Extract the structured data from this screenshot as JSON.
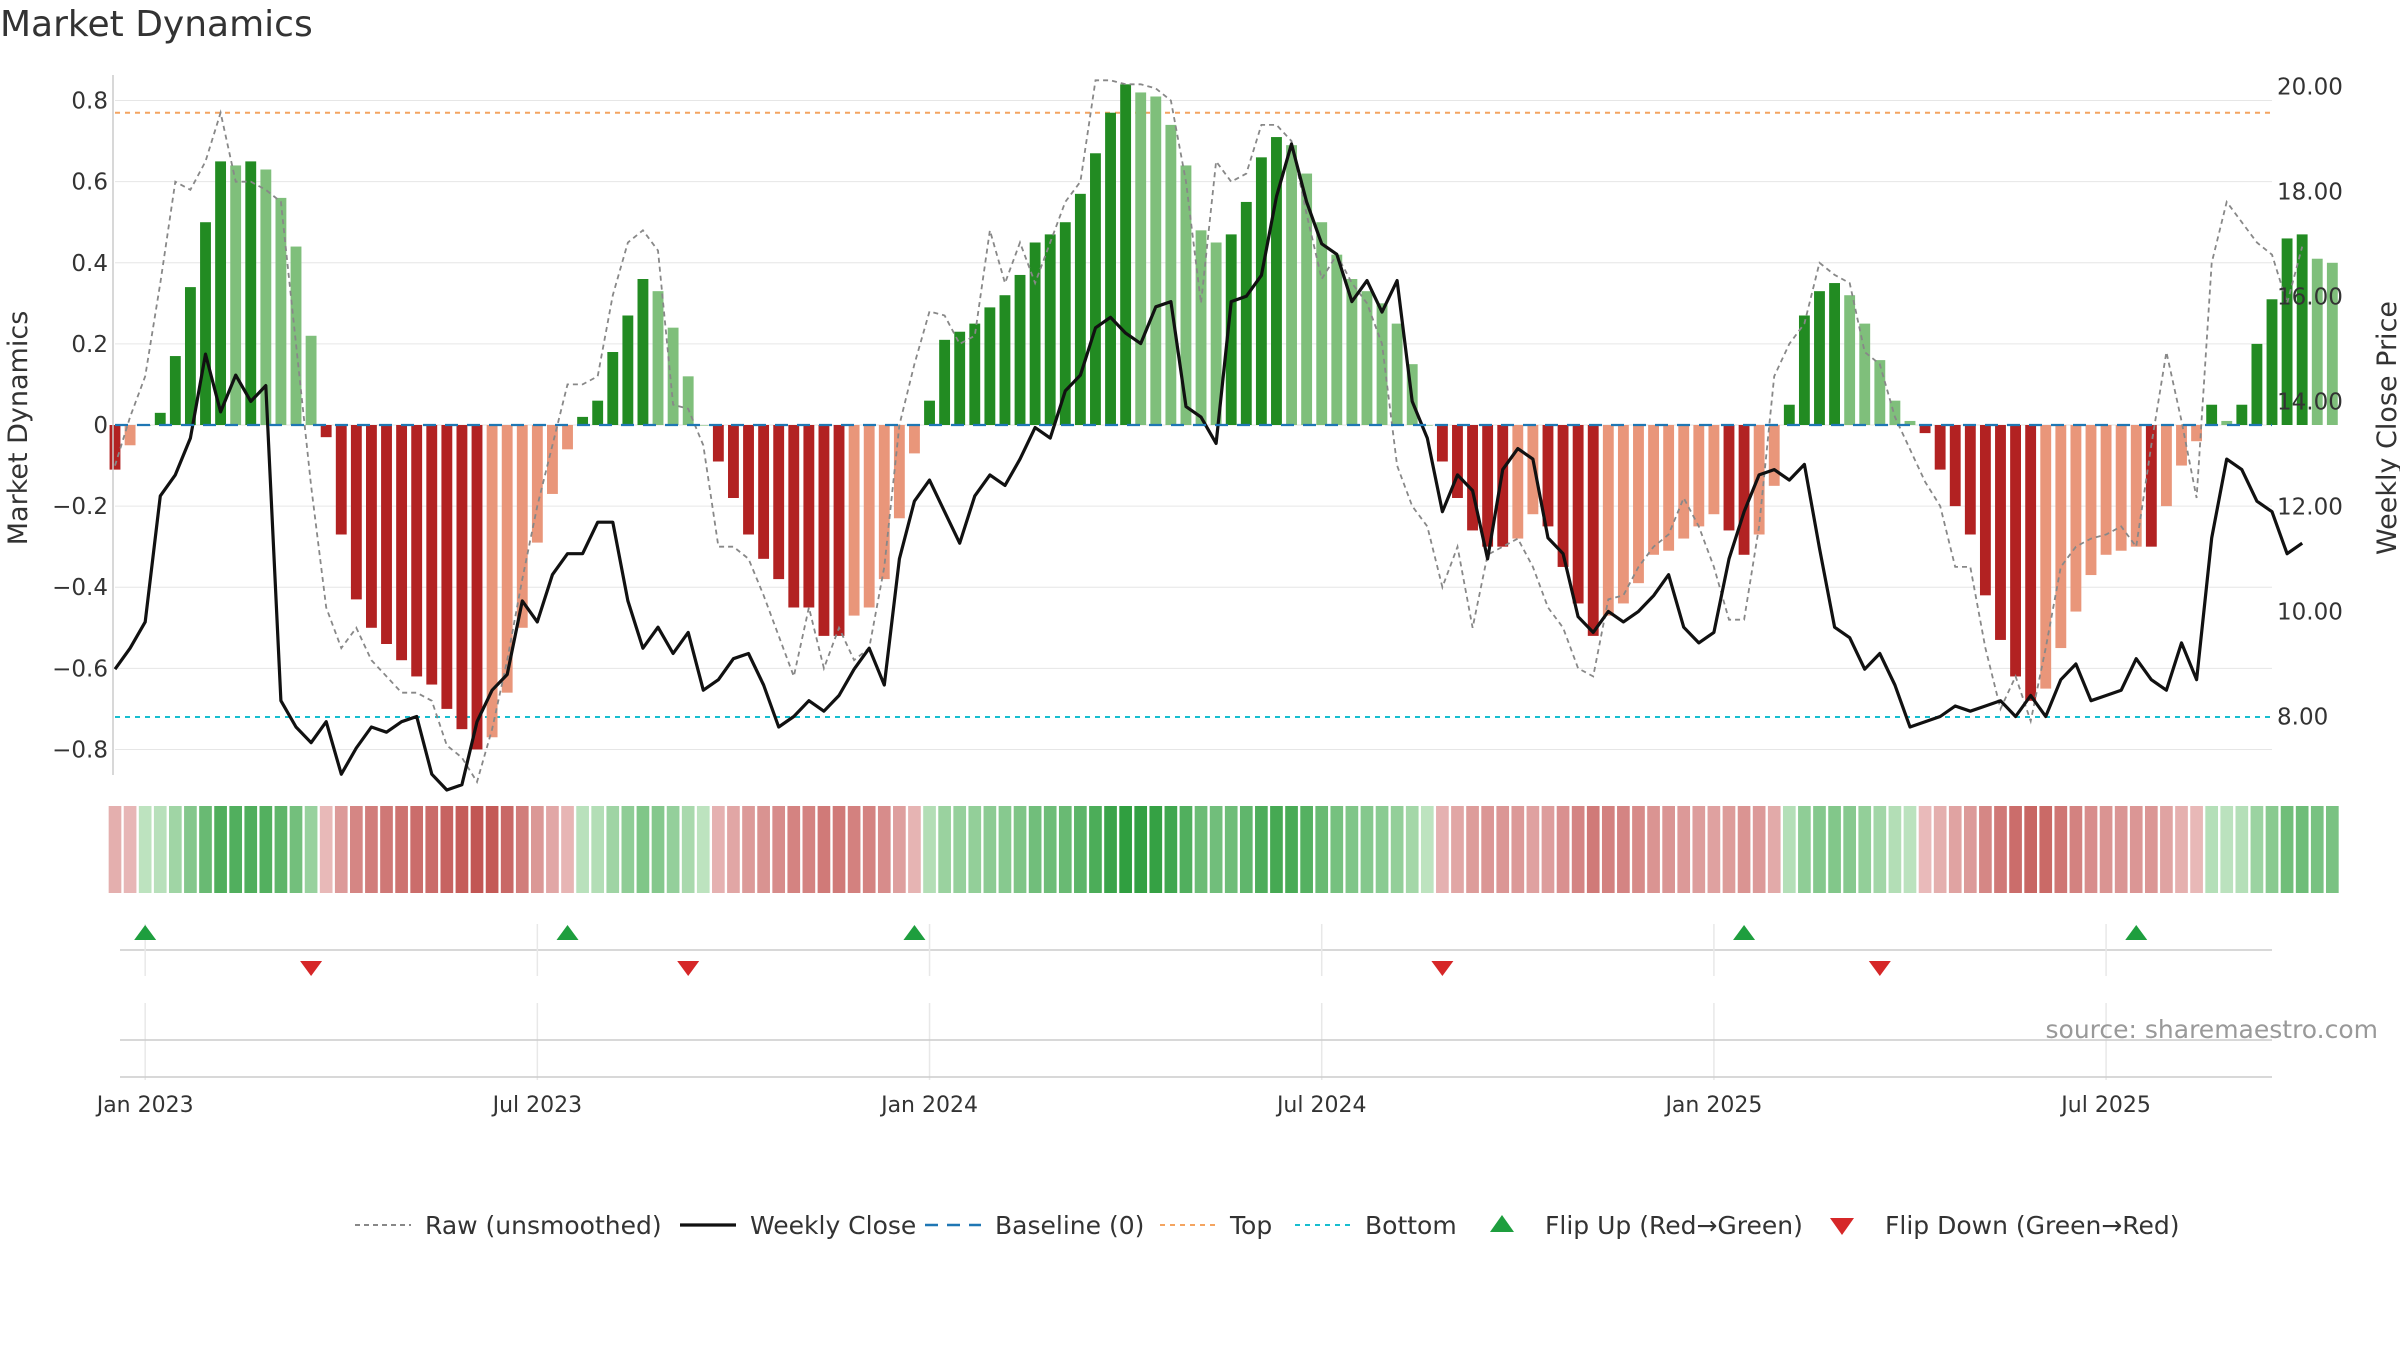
{
  "title": "Market Dynamics",
  "source_text": "source: sharemaestro.com",
  "colors": {
    "strong_green": "#228b22",
    "light_green": "#7fbf7b",
    "strong_red": "#b22222",
    "light_red": "#e9967a",
    "close_line": "#111111",
    "raw_line": "#888888",
    "baseline": "#1f77b4",
    "top": "#f4a460",
    "bottom": "#17becf",
    "flip_up": "#1e9e3e",
    "flip_down": "#d62728",
    "grid": "#e6e6e6"
  },
  "legend": [
    {
      "key": "raw",
      "label": "Raw (unsmoothed)"
    },
    {
      "key": "close",
      "label": "Weekly Close"
    },
    {
      "key": "baseline",
      "label": "Baseline (0)"
    },
    {
      "key": "top",
      "label": "Top"
    },
    {
      "key": "bottom",
      "label": "Bottom"
    },
    {
      "key": "flip_up",
      "label": "Flip Up (Red→Green)"
    },
    {
      "key": "flip_down",
      "label": "Flip Down (Green→Red)"
    }
  ],
  "chart_data": {
    "type": "bar",
    "title": "Market Dynamics",
    "ylabel": "Market Dynamics",
    "y2label": "Weekly Close Price",
    "ylim": [
      -0.9,
      0.9
    ],
    "y_ticks": [
      0.8,
      0.6,
      0.4,
      0.2,
      0,
      -0.2,
      -0.4,
      -0.6,
      -0.8
    ],
    "y_tick_labels": [
      "0.8",
      "0.6",
      "0.4",
      "0.2",
      "0",
      "−0.2",
      "−0.4",
      "−0.6",
      "−0.8"
    ],
    "y2lim": [
      6.6,
      20.5
    ],
    "y2_ticks": [
      20,
      18,
      16,
      14,
      12,
      10,
      8
    ],
    "y2_tick_labels": [
      "20.00",
      "18.00",
      "16.00",
      "14.00",
      "12.00",
      "10.00",
      "8.00"
    ],
    "x_ticks": [
      {
        "label": "Jan 2023",
        "week": 2
      },
      {
        "label": "Jul 2023",
        "week": 28
      },
      {
        "label": "Jan 2024",
        "week": 54
      },
      {
        "label": "Jul 2024",
        "week": 80
      },
      {
        "label": "Jan 2025",
        "week": 106
      },
      {
        "label": "Jul 2025",
        "week": 132
      }
    ],
    "week_range": [
      0,
      143
    ],
    "top_level": 0.77,
    "bottom_level": -0.72,
    "grid": true,
    "legend_position": "bottom",
    "bars": [
      -0.11,
      -0.05,
      0,
      0.03,
      0.17,
      0.34,
      0.5,
      0.65,
      0.64,
      0.65,
      0.63,
      0.56,
      0.44,
      0.22,
      -0.03,
      -0.27,
      -0.43,
      -0.5,
      -0.54,
      -0.58,
      -0.62,
      -0.64,
      -0.7,
      -0.75,
      -0.8,
      -0.77,
      -0.66,
      -0.5,
      -0.29,
      -0.17,
      -0.06,
      0.02,
      0.06,
      0.18,
      0.27,
      0.36,
      0.33,
      0.24,
      0.12,
      0,
      -0.09,
      -0.18,
      -0.27,
      -0.33,
      -0.38,
      -0.45,
      -0.45,
      -0.52,
      -0.52,
      -0.47,
      -0.45,
      -0.38,
      -0.23,
      -0.07,
      0.06,
      0.21,
      0.23,
      0.25,
      0.29,
      0.32,
      0.37,
      0.45,
      0.47,
      0.5,
      0.57,
      0.67,
      0.77,
      0.84,
      0.82,
      0.81,
      0.74,
      0.64,
      0.48,
      0.45,
      0.47,
      0.55,
      0.66,
      0.71,
      0.69,
      0.62,
      0.5,
      0.42,
      0.36,
      0.33,
      0.3,
      0.25,
      0.15,
      0,
      -0.09,
      -0.18,
      -0.26,
      -0.3,
      -0.3,
      -0.28,
      -0.22,
      -0.25,
      -0.35,
      -0.44,
      -0.52,
      -0.47,
      -0.44,
      -0.39,
      -0.32,
      -0.31,
      -0.28,
      -0.25,
      -0.22,
      -0.26,
      -0.32,
      -0.27,
      -0.15,
      0.05,
      0.27,
      0.33,
      0.35,
      0.32,
      0.25,
      0.16,
      0.06,
      0.01,
      -0.02,
      -0.11,
      -0.2,
      -0.27,
      -0.42,
      -0.53,
      -0.62,
      -0.68,
      -0.65,
      -0.55,
      -0.46,
      -0.37,
      -0.32,
      -0.31,
      -0.3,
      -0.3,
      -0.2,
      -0.1,
      -0.04,
      0.05,
      0.01,
      0.05,
      0.2,
      0.31,
      0.46,
      0.47,
      0.41,
      0.4
    ],
    "series": [
      {
        "name": "Raw (unsmoothed)",
        "values": [
          -0.1,
          0.02,
          0.12,
          0.35,
          0.6,
          0.58,
          0.65,
          0.77,
          0.6,
          0.6,
          0.58,
          0.55,
          0.2,
          -0.15,
          -0.45,
          -0.55,
          -0.5,
          -0.58,
          -0.62,
          -0.66,
          -0.66,
          -0.68,
          -0.79,
          -0.82,
          -0.88,
          -0.75,
          -0.58,
          -0.38,
          -0.2,
          -0.05,
          0.1,
          0.1,
          0.12,
          0.32,
          0.45,
          0.48,
          0.43,
          0.05,
          0.04,
          -0.05,
          -0.3,
          -0.3,
          -0.33,
          -0.42,
          -0.52,
          -0.62,
          -0.45,
          -0.6,
          -0.5,
          -0.58,
          -0.55,
          -0.35,
          0,
          0.15,
          0.28,
          0.27,
          0.2,
          0.22,
          0.48,
          0.35,
          0.45,
          0.35,
          0.45,
          0.55,
          0.6,
          0.85,
          0.85,
          0.84,
          0.84,
          0.83,
          0.8,
          0.6,
          0.3,
          0.65,
          0.6,
          0.62,
          0.74,
          0.74,
          0.7,
          0.52,
          0.36,
          0.42,
          0.35,
          0.3,
          0.2,
          -0.1,
          -0.2,
          -0.25,
          -0.4,
          -0.3,
          -0.5,
          -0.32,
          -0.3,
          -0.28,
          -0.35,
          -0.45,
          -0.5,
          -0.6,
          -0.62,
          -0.43,
          -0.42,
          -0.35,
          -0.3,
          -0.27,
          -0.18,
          -0.25,
          -0.35,
          -0.48,
          -0.48,
          -0.25,
          0.12,
          0.2,
          0.25,
          0.4,
          0.37,
          0.35,
          0.18,
          0.15,
          0.02,
          -0.06,
          -0.14,
          -0.2,
          -0.35,
          -0.35,
          -0.55,
          -0.7,
          -0.62,
          -0.73,
          -0.55,
          -0.35,
          -0.3,
          -0.28,
          -0.27,
          -0.25,
          -0.3,
          -0.05,
          0.18,
          0.01,
          -0.18,
          0.4,
          0.55,
          0.5,
          0.45,
          0.42,
          0.3,
          0.44
        ]
      },
      {
        "name": "Weekly Close",
        "values": [
          8.9,
          9.3,
          9.8,
          12.2,
          12.6,
          13.3,
          14.9,
          13.8,
          14.5,
          14.0,
          14.3,
          8.3,
          7.8,
          7.5,
          7.9,
          6.9,
          7.4,
          7.8,
          7.7,
          7.9,
          8.0,
          6.9,
          6.6,
          6.7,
          7.9,
          8.5,
          8.8,
          10.2,
          9.8,
          10.7,
          11.1,
          11.1,
          11.7,
          11.7,
          10.2,
          9.3,
          9.7,
          9.2,
          9.6,
          8.5,
          8.7,
          9.1,
          9.2,
          8.6,
          7.8,
          8.0,
          8.3,
          8.1,
          8.4,
          8.9,
          9.3,
          8.6,
          11.0,
          12.1,
          12.5,
          11.9,
          11.3,
          12.2,
          12.6,
          12.4,
          12.9,
          13.5,
          13.3,
          14.2,
          14.5,
          15.4,
          15.6,
          15.3,
          15.1,
          15.8,
          15.9,
          13.9,
          13.7,
          13.2,
          15.9,
          16.0,
          16.4,
          17.9,
          18.9,
          17.8,
          17.0,
          16.8,
          15.9,
          16.3,
          15.7,
          16.3,
          14.0,
          13.3,
          11.9,
          12.6,
          12.3,
          11.0,
          12.7,
          13.1,
          12.9,
          11.4,
          11.1,
          9.9,
          9.6,
          10.0,
          9.8,
          10.0,
          10.3,
          10.7,
          9.7,
          9.4,
          9.6,
          11.0,
          11.9,
          12.6,
          12.7,
          12.5,
          12.8,
          11.2,
          9.7,
          9.5,
          8.9,
          9.2,
          8.6,
          7.8,
          7.9,
          8.0,
          8.2,
          8.1,
          8.2,
          8.3,
          8.0,
          8.4,
          8.0,
          8.7,
          9.0,
          8.3,
          8.4,
          8.5,
          9.1,
          8.7,
          8.5,
          9.4,
          8.7,
          11.4,
          12.9,
          12.7,
          12.1,
          11.9,
          11.1,
          11.3
        ]
      }
    ],
    "flip_up_weeks": [
      2,
      30,
      53,
      108,
      134
    ],
    "flip_down_weeks": [
      13,
      38,
      88,
      117
    ]
  }
}
